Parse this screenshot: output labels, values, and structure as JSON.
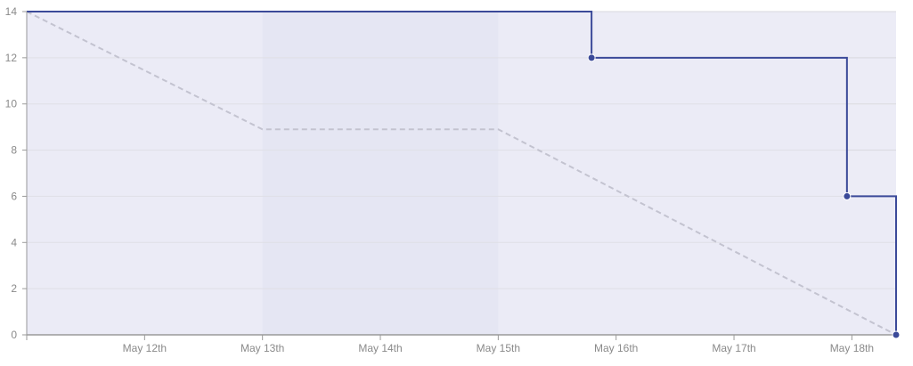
{
  "chart_data": {
    "type": "line",
    "x_axis_type": "date",
    "x_domain": [
      "2025-05-11",
      "2025-05-18T09:00"
    ],
    "x_ticks": [
      {
        "date": "2025-05-12",
        "label": "May 12th"
      },
      {
        "date": "2025-05-13",
        "label": "May 13th"
      },
      {
        "date": "2025-05-14",
        "label": "May 14th"
      },
      {
        "date": "2025-05-15",
        "label": "May 15th"
      },
      {
        "date": "2025-05-16",
        "label": "May 16th"
      },
      {
        "date": "2025-05-17",
        "label": "May 17th"
      },
      {
        "date": "2025-05-18",
        "label": "May 18th"
      }
    ],
    "ylim": [
      0,
      14
    ],
    "y_ticks": [
      0,
      2,
      4,
      6,
      8,
      10,
      12,
      14
    ],
    "grid": true,
    "non_working_period": {
      "start": "2025-05-13",
      "end": "2025-05-15"
    },
    "series": [
      {
        "style": "step",
        "color": "#3b4a99",
        "fill": "#ececf6",
        "points": [
          {
            "x": "2025-05-11",
            "y": 14,
            "marker": false
          },
          {
            "x": "2025-05-15T19:00",
            "y": 12,
            "marker": true
          },
          {
            "x": "2025-05-17T23:00",
            "y": 6,
            "marker": true
          },
          {
            "x": "2025-05-18T09:00",
            "y": 0,
            "marker": true
          }
        ]
      },
      {
        "style": "dashed",
        "color": "#c3c3d0",
        "points": [
          {
            "x": "2025-05-11",
            "y": 14
          },
          {
            "x": "2025-05-13",
            "y": 8.9
          },
          {
            "x": "2025-05-15",
            "y": 8.9
          },
          {
            "x": "2025-05-18T09:00",
            "y": 0
          }
        ]
      }
    ],
    "colors": {
      "plot_fill": "#ececf6",
      "non_working_fill": "#e2e4f1",
      "grid": "#d9d9de",
      "axis": "#9a9a9a",
      "tick_text": "#8a8a8a"
    }
  }
}
